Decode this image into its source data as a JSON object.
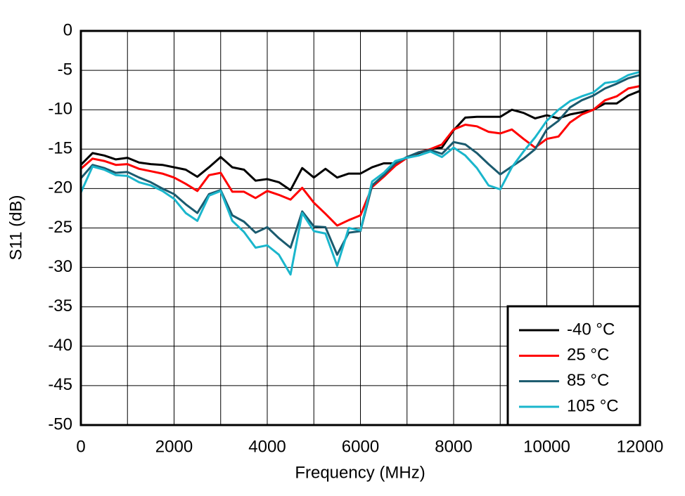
{
  "chart_data": {
    "type": "line",
    "xlabel": "Frequency (MHz)",
    "ylabel": "S11 (dB)",
    "x": [
      0,
      250,
      500,
      750,
      1000,
      1250,
      1500,
      1750,
      2000,
      2250,
      2500,
      2750,
      3000,
      3250,
      3500,
      3750,
      4000,
      4250,
      4500,
      4750,
      5000,
      5250,
      5500,
      5750,
      6000,
      6250,
      6500,
      6750,
      7000,
      7250,
      7500,
      7750,
      8000,
      8250,
      8500,
      8750,
      9000,
      9250,
      9500,
      9750,
      10000,
      10250,
      10500,
      10750,
      11000,
      11250,
      11500,
      11750,
      12000
    ],
    "series": [
      {
        "name": "-40 °C",
        "color": "#000000",
        "values": [
          -17.0,
          -15.5,
          -15.8,
          -16.3,
          -16.1,
          -16.7,
          -16.9,
          -17.0,
          -17.3,
          -17.6,
          -18.5,
          -17.3,
          -16.0,
          -17.3,
          -17.6,
          -19.0,
          -18.8,
          -19.2,
          -20.2,
          -17.4,
          -18.6,
          -17.5,
          -18.6,
          -18.1,
          -18.1,
          -17.3,
          -16.8,
          -16.8,
          -16.0,
          -15.5,
          -15.0,
          -14.8,
          -12.6,
          -11.0,
          -10.9,
          -10.9,
          -10.9,
          -10.0,
          -10.4,
          -11.1,
          -10.7,
          -11.1,
          -10.6,
          -10.3,
          -10.0,
          -9.2,
          -9.2,
          -8.2,
          -7.6
        ]
      },
      {
        "name": "25 °C",
        "color": "#ff0000",
        "values": [
          -17.5,
          -16.2,
          -16.5,
          -17.0,
          -16.9,
          -17.5,
          -17.8,
          -18.1,
          -18.6,
          -19.4,
          -20.3,
          -18.3,
          -18.0,
          -20.4,
          -20.4,
          -21.2,
          -20.3,
          -20.8,
          -21.4,
          -19.9,
          -21.8,
          -23.2,
          -24.7,
          -24.0,
          -23.4,
          -19.8,
          -18.5,
          -17.1,
          -16.1,
          -15.4,
          -15.0,
          -14.4,
          -12.5,
          -11.9,
          -12.1,
          -12.8,
          -13.0,
          -12.5,
          -13.7,
          -14.8,
          -13.7,
          -13.4,
          -11.6,
          -10.6,
          -10.0,
          -8.8,
          -8.3,
          -7.3,
          -7.0
        ]
      },
      {
        "name": "85 °C",
        "color": "#1a5a6e",
        "values": [
          -18.7,
          -17.0,
          -17.4,
          -18.0,
          -17.9,
          -18.6,
          -19.2,
          -20.0,
          -20.7,
          -22.0,
          -23.1,
          -20.7,
          -20.2,
          -23.4,
          -24.2,
          -25.6,
          -24.9,
          -26.3,
          -27.5,
          -22.9,
          -24.8,
          -24.9,
          -28.4,
          -25.6,
          -25.4,
          -19.6,
          -18.3,
          -16.8,
          -16.0,
          -15.4,
          -15.1,
          -15.6,
          -14.1,
          -14.4,
          -15.5,
          -16.9,
          -18.2,
          -17.2,
          -16.2,
          -15.0,
          -12.5,
          -11.4,
          -9.7,
          -8.8,
          -8.2,
          -7.3,
          -6.7,
          -6.0,
          -5.6
        ]
      },
      {
        "name": "105 °C",
        "color": "#1ab6cc",
        "values": [
          -20.5,
          -17.2,
          -17.6,
          -18.3,
          -18.4,
          -19.2,
          -19.6,
          -20.3,
          -21.3,
          -23.1,
          -24.1,
          -20.9,
          -20.3,
          -24.1,
          -25.5,
          -27.5,
          -27.2,
          -28.4,
          -30.9,
          -23.1,
          -25.4,
          -25.7,
          -29.8,
          -25.0,
          -25.3,
          -19.1,
          -18.0,
          -16.5,
          -16.1,
          -15.8,
          -15.3,
          -16.0,
          -14.8,
          -15.8,
          -17.4,
          -19.6,
          -20.1,
          -17.3,
          -15.3,
          -13.5,
          -11.4,
          -10.0,
          -8.9,
          -8.3,
          -7.8,
          -6.6,
          -6.4,
          -5.6,
          -5.2
        ]
      }
    ],
    "xlim": [
      0,
      12000
    ],
    "xticks": [
      0,
      2000,
      4000,
      6000,
      8000,
      10000,
      12000
    ],
    "x_minor_ticks": [
      1000,
      3000,
      5000,
      7000,
      9000,
      11000
    ],
    "ylim": [
      -50,
      0
    ],
    "yticks": [
      -50,
      -45,
      -40,
      -35,
      -30,
      -25,
      -20,
      -15,
      -10,
      -5,
      0
    ],
    "grid": true,
    "legend": "lower right"
  }
}
